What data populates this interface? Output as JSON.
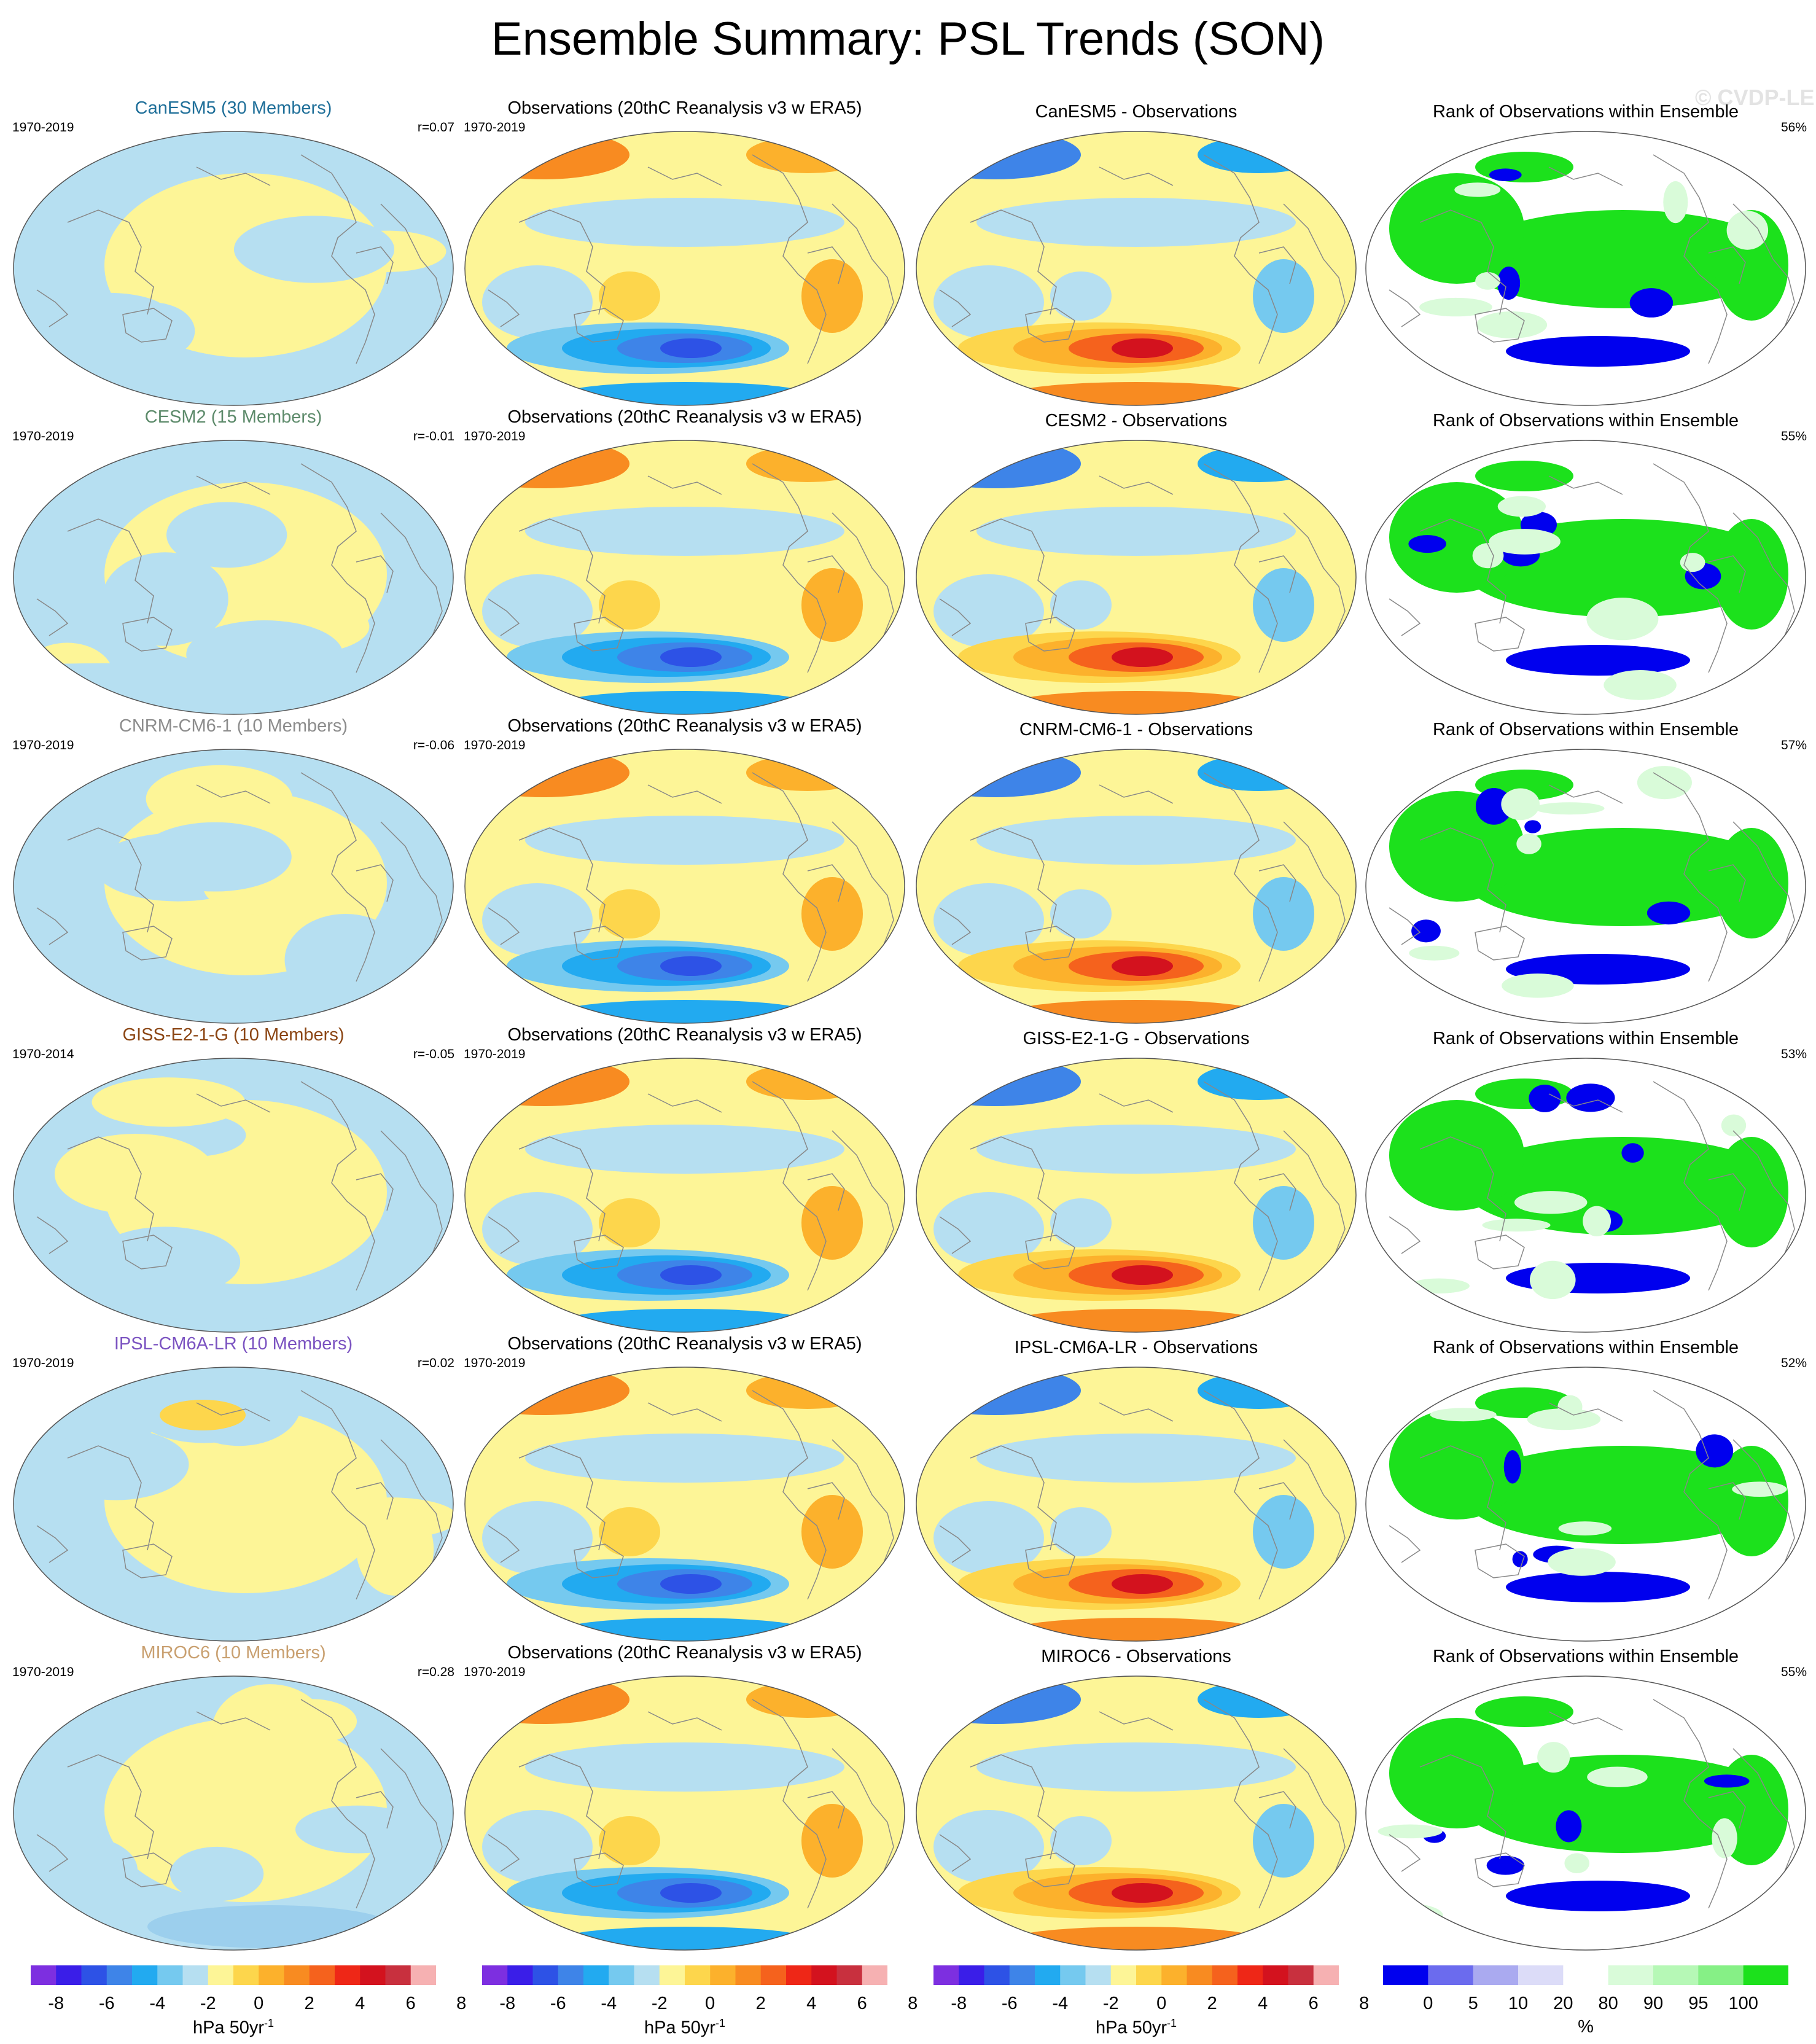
{
  "title": "Ensemble Summary: PSL Trends (SON)",
  "watermark": "© CVDP-LE",
  "colors": {
    "trend_scale": [
      "#7d2fe0",
      "#3a1ee8",
      "#2d52e6",
      "#3e84e8",
      "#22aaf0",
      "#75c9ef",
      "#b6dff1",
      "#fdf597",
      "#fdd64c",
      "#fcb12c",
      "#f88b21",
      "#f5621d",
      "#ee2717",
      "#d3121e",
      "#c8303e",
      "#f6b1b2"
    ],
    "rank_scale": [
      "#0000ee",
      "#6b6bee",
      "#aaaaf0",
      "#dcdcf8",
      "#ffffff",
      "#d9fbd9",
      "#b6f8b6",
      "#86f086",
      "#1ce11c"
    ],
    "model_titles": [
      "#1f6f99",
      "#5c8a6a",
      "#8c8c8c",
      "#8b4513",
      "#7b53c1",
      "#c9a070"
    ],
    "land_outline": "#888888"
  },
  "rows": [
    {
      "model_title": "CanESM5 (30 Members)",
      "model_period": "1970-2019",
      "model_r": "r=0.07",
      "obs_title": "Observations (20thC Reanalysis v3 w ERA5)",
      "obs_period": "1970-2019",
      "diff_title": "CanESM5 - Observations",
      "rank_title": "Rank of Observations within Ensemble",
      "rank_pct": "56%"
    },
    {
      "model_title": "CESM2 (15 Members)",
      "model_period": "1970-2019",
      "model_r": "r=-0.01",
      "obs_title": "Observations (20thC Reanalysis v3 w ERA5)",
      "obs_period": "1970-2019",
      "diff_title": "CESM2 - Observations",
      "rank_title": "Rank of Observations within Ensemble",
      "rank_pct": "55%"
    },
    {
      "model_title": "CNRM-CM6-1 (10 Members)",
      "model_period": "1970-2019",
      "model_r": "r=-0.06",
      "obs_title": "Observations (20thC Reanalysis v3 w ERA5)",
      "obs_period": "1970-2019",
      "diff_title": "CNRM-CM6-1 - Observations",
      "rank_title": "Rank of Observations within Ensemble",
      "rank_pct": "57%"
    },
    {
      "model_title": "GISS-E2-1-G (10 Members)",
      "model_period": "1970-2014",
      "model_r": "r=-0.05",
      "obs_title": "Observations (20thC Reanalysis v3 w ERA5)",
      "obs_period": "1970-2019",
      "diff_title": "GISS-E2-1-G - Observations",
      "rank_title": "Rank of Observations within Ensemble",
      "rank_pct": "53%"
    },
    {
      "model_title": "IPSL-CM6A-LR (10 Members)",
      "model_period": "1970-2019",
      "model_r": "r=0.02",
      "obs_title": "Observations (20thC Reanalysis v3 w ERA5)",
      "obs_period": "1970-2019",
      "diff_title": "IPSL-CM6A-LR - Observations",
      "rank_title": "Rank of Observations within Ensemble",
      "rank_pct": "52%"
    },
    {
      "model_title": "MIROC6 (10 Members)",
      "model_period": "1970-2019",
      "model_r": "r=0.28",
      "obs_title": "Observations (20thC Reanalysis v3 w ERA5)",
      "obs_period": "1970-2019",
      "diff_title": "MIROC6 - Observations",
      "rank_title": "Rank of Observations within Ensemble",
      "rank_pct": "55%"
    }
  ],
  "colorbars": {
    "trend_ticks": [
      "-8",
      "-6",
      "-4",
      "-2",
      "0",
      "2",
      "4",
      "6",
      "8"
    ],
    "trend_unit": "hPa 50yr",
    "trend_unit_exp": "-1",
    "rank_ticks": [
      "0",
      "5",
      "10",
      "20",
      "80",
      "90",
      "95",
      "100"
    ],
    "rank_unit": "%"
  }
}
